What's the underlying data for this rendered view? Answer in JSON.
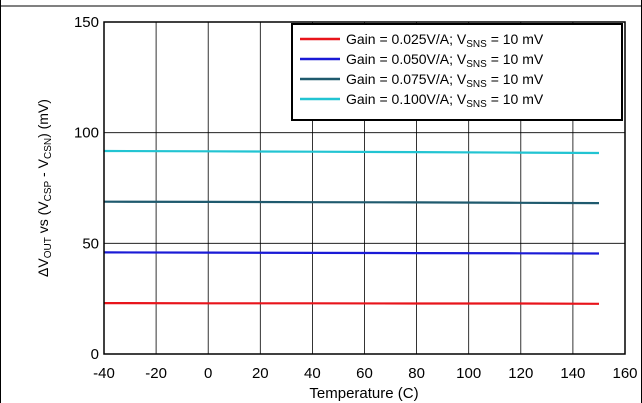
{
  "chart_data": {
    "type": "line",
    "xlabel": "Temperature (C)",
    "ylabel": {
      "delta": "Δ",
      "v1": "V",
      "v1_sub": "OUT",
      "mid": " vs (",
      "v2": "V",
      "v2_sub": "CSP",
      "minus": " - ",
      "v3": "V",
      "v3_sub": "CSN",
      "end": ") (mV)"
    },
    "xlim": [
      -40,
      160
    ],
    "ylim": [
      0,
      150
    ],
    "xticks": [
      -40,
      -20,
      0,
      20,
      40,
      60,
      80,
      100,
      120,
      140,
      160
    ],
    "yticks": [
      0,
      50,
      100,
      150
    ],
    "grid": true,
    "legend_position": "top-right",
    "series": [
      {
        "legend": {
          "prefix": "Gain = 0.025V/A; V",
          "sub": "SNS",
          "suffix": " = 10 mV"
        },
        "color": "#e8141b",
        "x": [
          -40,
          0,
          40,
          80,
          120,
          150
        ],
        "y": [
          23.0,
          22.9,
          22.9,
          22.8,
          22.8,
          22.7
        ]
      },
      {
        "legend": {
          "prefix": "Gain = 0.050V/A; V",
          "sub": "SNS",
          "suffix": " = 10 mV"
        },
        "color": "#1a1ad6",
        "x": [
          -40,
          0,
          40,
          80,
          120,
          150
        ],
        "y": [
          45.9,
          45.8,
          45.7,
          45.6,
          45.5,
          45.4
        ]
      },
      {
        "legend": {
          "prefix": "Gain = 0.075V/A; V",
          "sub": "SNS",
          "suffix": " = 10 mV"
        },
        "color": "#1f5a6e",
        "x": [
          -40,
          0,
          40,
          80,
          120,
          150
        ],
        "y": [
          68.8,
          68.7,
          68.6,
          68.5,
          68.3,
          68.2
        ]
      },
      {
        "legend": {
          "prefix": "Gain = 0.100V/A; V",
          "sub": "SNS",
          "suffix": " = 10 mV"
        },
        "color": "#22c4d2",
        "x": [
          -40,
          0,
          40,
          80,
          120,
          150
        ],
        "y": [
          91.7,
          91.6,
          91.4,
          91.2,
          91.0,
          90.8
        ]
      }
    ]
  }
}
